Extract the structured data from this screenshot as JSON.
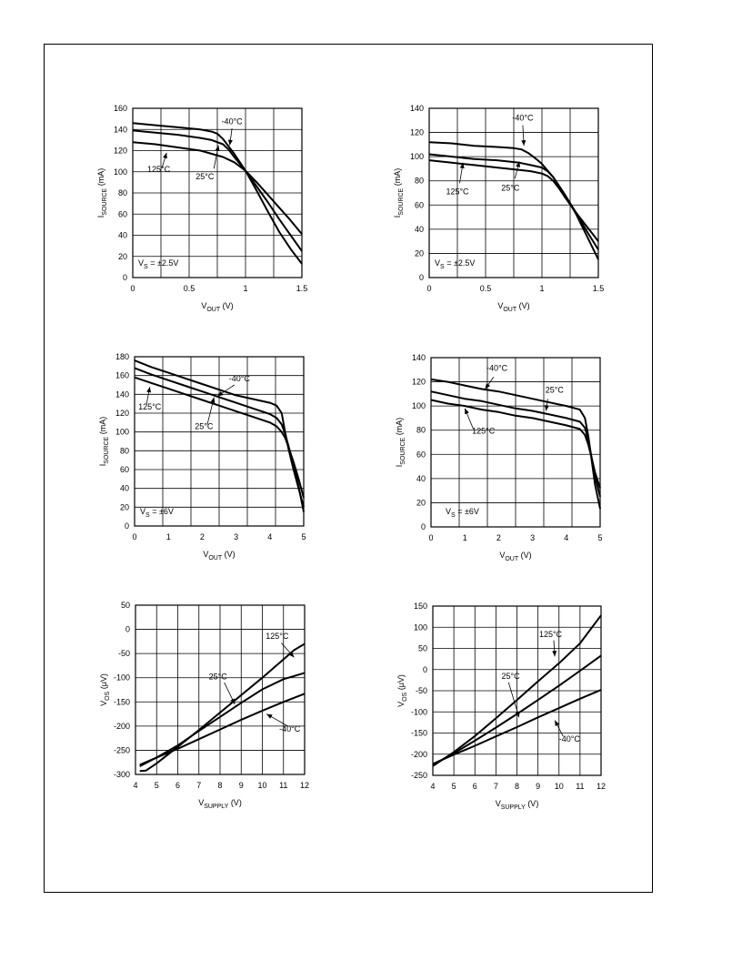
{
  "chart_data": [
    {
      "type": "line",
      "xlabel": {
        "main": "V",
        "sub": "OUT",
        "unit": " (V)"
      },
      "ylabel": {
        "main": "I",
        "sub": "SOURCE",
        "unit": " (mA)"
      },
      "xlim": [
        0,
        1.5
      ],
      "ylim": [
        0,
        160
      ],
      "xticks": [
        0,
        0.5,
        1,
        1.5
      ],
      "xtick_labels": [
        "0",
        "0.5",
        "1",
        "1.5"
      ],
      "yticks": [
        0,
        20,
        40,
        60,
        80,
        100,
        120,
        140,
        160
      ],
      "condition": "V_S = ±2.5V",
      "condition_parts": {
        "main": "V",
        "sub": "S",
        "rest": " = ±2.5V"
      },
      "grid": true,
      "series": [
        {
          "name": "-40°C",
          "x": [
            0,
            0.2,
            0.4,
            0.6,
            0.7,
            0.75,
            0.8,
            0.9,
            1.0,
            1.1,
            1.2,
            1.3,
            1.4,
            1.5
          ],
          "y": [
            146,
            144,
            142,
            140,
            138,
            136,
            131,
            117,
            101,
            82,
            62,
            43,
            27,
            13
          ]
        },
        {
          "name": "25°C",
          "x": [
            0,
            0.2,
            0.4,
            0.6,
            0.7,
            0.8,
            0.85,
            0.9,
            1.0,
            1.1,
            1.2,
            1.3,
            1.4,
            1.5
          ],
          "y": [
            139,
            137,
            135,
            132,
            130,
            126,
            121,
            114,
            101,
            86,
            71,
            55,
            40,
            25
          ]
        },
        {
          "name": "125°C",
          "x": [
            0,
            0.2,
            0.4,
            0.6,
            0.7,
            0.8,
            0.9,
            1.0,
            1.1,
            1.2,
            1.3,
            1.4,
            1.5
          ],
          "y": [
            128,
            126,
            123,
            120,
            117,
            114,
            109,
            101,
            90,
            78,
            66,
            54,
            41
          ]
        }
      ],
      "annotations": [
        {
          "text": "-40°C",
          "x": 0.88,
          "y": 145,
          "ax": 0.88,
          "ay": 141,
          "bx": 0.86,
          "by": 125
        },
        {
          "text": "25°C",
          "x": 0.64,
          "y": 93,
          "ax": 0.72,
          "ay": 103,
          "bx": 0.76,
          "by": 125
        },
        {
          "text": "125°C",
          "x": 0.23,
          "y": 100,
          "ax": 0.26,
          "ay": 104,
          "bx": 0.3,
          "by": 118
        }
      ]
    },
    {
      "type": "line",
      "xlabel": {
        "main": "V",
        "sub": "OUT",
        "unit": " (V)"
      },
      "ylabel": {
        "main": "I",
        "sub": "SOURCE",
        "unit": " (mA)"
      },
      "xlim": [
        0,
        1.5
      ],
      "ylim": [
        0,
        140
      ],
      "xticks": [
        0,
        0.5,
        1,
        1.5
      ],
      "xtick_labels": [
        "0",
        "0.5",
        "1",
        "1.5"
      ],
      "yticks": [
        0,
        20,
        40,
        60,
        80,
        100,
        120,
        140
      ],
      "condition": "V_S = ±2.5V",
      "condition_parts": {
        "main": "V",
        "sub": "S",
        "rest": " = ±2.5V"
      },
      "grid": true,
      "series": [
        {
          "name": "-40°C",
          "x": [
            0,
            0.2,
            0.4,
            0.6,
            0.75,
            0.82,
            0.88,
            0.95,
            1.0,
            1.1,
            1.2,
            1.3,
            1.4,
            1.5
          ],
          "y": [
            112,
            111,
            109,
            108,
            107,
            106,
            103,
            98,
            94,
            83,
            69,
            54,
            38,
            23
          ]
        },
        {
          "name": "25°C",
          "x": [
            0,
            0.2,
            0.4,
            0.6,
            0.8,
            0.9,
            1.0,
            1.05,
            1.1,
            1.2,
            1.3,
            1.4,
            1.5
          ],
          "y": [
            102,
            100,
            98,
            97,
            95,
            93,
            91,
            88,
            83,
            69,
            53,
            34,
            15
          ]
        },
        {
          "name": "125°C",
          "x": [
            0,
            0.2,
            0.4,
            0.6,
            0.8,
            0.9,
            1.0,
            1.05,
            1.1,
            1.15,
            1.2,
            1.3,
            1.4,
            1.5
          ],
          "y": [
            97,
            95,
            93,
            91,
            89,
            88,
            86,
            84,
            80,
            74,
            67,
            54,
            42,
            30
          ]
        }
      ],
      "annotations": [
        {
          "text": "-40°C",
          "x": 0.83,
          "y": 130,
          "ax": 0.83,
          "ay": 126,
          "bx": 0.84,
          "by": 109
        },
        {
          "text": "25°C",
          "x": 0.72,
          "y": 72,
          "ax": 0.76,
          "ay": 82,
          "bx": 0.8,
          "by": 96
        },
        {
          "text": "125°C",
          "x": 0.25,
          "y": 69,
          "ax": 0.27,
          "ay": 78,
          "bx": 0.3,
          "by": 95
        }
      ]
    },
    {
      "type": "line",
      "xlabel": {
        "main": "V",
        "sub": "OUT",
        "unit": " (V)"
      },
      "ylabel": {
        "main": "I",
        "sub": "SOURCE",
        "unit": " (mA)"
      },
      "xlim": [
        0,
        5
      ],
      "ylim": [
        0,
        180
      ],
      "xticks": [
        0,
        1,
        2,
        3,
        4,
        5
      ],
      "xtick_labels": [
        "0",
        "1",
        "2",
        "3",
        "4",
        "5"
      ],
      "yticks": [
        0,
        20,
        40,
        60,
        80,
        100,
        120,
        140,
        160,
        180
      ],
      "condition": "V_S = ±6V",
      "condition_parts": {
        "main": "V",
        "sub": "S",
        "rest": " = ±6V"
      },
      "grid": true,
      "series": [
        {
          "name": "-40°C",
          "x": [
            0,
            0.5,
            1,
            1.5,
            2,
            2.5,
            3,
            3.5,
            4,
            4.2,
            4.35,
            4.45,
            4.55,
            4.7,
            4.85,
            5
          ],
          "y": [
            176,
            169,
            163,
            157,
            151,
            145,
            139,
            135,
            131,
            128,
            120,
            100,
            82,
            60,
            40,
            20
          ]
        },
        {
          "name": "25°C",
          "x": [
            0,
            0.5,
            1,
            1.5,
            2,
            2.5,
            3,
            3.5,
            4,
            4.2,
            4.35,
            4.45,
            4.55,
            4.7,
            4.85,
            5
          ],
          "y": [
            168,
            161,
            155,
            149,
            143,
            137,
            131,
            125,
            119,
            115,
            108,
            98,
            85,
            65,
            42,
            15
          ]
        },
        {
          "name": "125°C",
          "x": [
            0,
            0.5,
            1,
            1.5,
            2,
            2.5,
            3,
            3.5,
            4,
            4.2,
            4.35,
            4.45,
            4.55,
            4.7,
            4.85,
            5
          ],
          "y": [
            158,
            152,
            146,
            140,
            134,
            128,
            122,
            116,
            110,
            106,
            100,
            94,
            84,
            68,
            50,
            30
          ]
        }
      ],
      "annotations": [
        {
          "text": "-40°C",
          "x": 3.1,
          "y": 154,
          "ax": 2.95,
          "ay": 150,
          "bx": 2.45,
          "by": 138
        },
        {
          "text": "25°C",
          "x": 2.05,
          "y": 103,
          "ax": 2.15,
          "ay": 108,
          "bx": 2.35,
          "by": 137
        },
        {
          "text": "125°C",
          "x": 0.45,
          "y": 124,
          "ax": 0.35,
          "ay": 129,
          "bx": 0.45,
          "by": 148
        }
      ]
    },
    {
      "type": "line",
      "xlabel": {
        "main": "V",
        "sub": "OUT",
        "unit": " (V)"
      },
      "ylabel": {
        "main": "I",
        "sub": "SOURCE",
        "unit": " (mA)"
      },
      "xlim": [
        0,
        5
      ],
      "ylim": [
        0,
        140
      ],
      "xticks": [
        0,
        1,
        2,
        3,
        4,
        5
      ],
      "xtick_labels": [
        "0",
        "1",
        "2",
        "3",
        "4",
        "5"
      ],
      "yticks": [
        0,
        20,
        40,
        60,
        80,
        100,
        120,
        140
      ],
      "condition": "V_S = ±6V",
      "condition_parts": {
        "main": "V",
        "sub": "S",
        "rest": " = ±6V"
      },
      "grid": true,
      "series": [
        {
          "name": "-40°C",
          "x": [
            0,
            0.5,
            1,
            1.5,
            2,
            2.5,
            3,
            3.5,
            4,
            4.4,
            4.55,
            4.65,
            4.75,
            4.85,
            5
          ],
          "y": [
            122,
            120,
            117,
            114,
            112,
            109,
            106,
            103,
            100,
            97,
            90,
            75,
            55,
            35,
            15
          ]
        },
        {
          "name": "25°C",
          "x": [
            0,
            0.5,
            1,
            1.5,
            2,
            2.5,
            3,
            3.5,
            4,
            4.4,
            4.55,
            4.65,
            4.75,
            4.85,
            5
          ],
          "y": [
            112,
            109,
            106,
            104,
            101,
            98,
            96,
            93,
            90,
            87,
            82,
            72,
            57,
            42,
            25
          ]
        },
        {
          "name": "125°C",
          "x": [
            0,
            0.5,
            1,
            1.5,
            2,
            2.5,
            3,
            3.5,
            4,
            4.4,
            4.55,
            4.65,
            4.75,
            4.85,
            5
          ],
          "y": [
            105,
            102,
            100,
            97,
            95,
            92,
            90,
            87,
            84,
            81,
            76,
            68,
            57,
            45,
            32
          ]
        }
      ],
      "annotations": [
        {
          "text": "-40°C",
          "x": 1.95,
          "y": 129,
          "ax": 1.85,
          "ay": 124,
          "bx": 1.6,
          "by": 114
        },
        {
          "text": "25°C",
          "x": 3.65,
          "y": 111,
          "ax": 3.45,
          "ay": 106,
          "bx": 3.4,
          "by": 96
        },
        {
          "text": "125°C",
          "x": 1.55,
          "y": 77,
          "ax": 1.25,
          "ay": 81,
          "bx": 1.0,
          "by": 98
        }
      ]
    },
    {
      "type": "line",
      "xlabel": {
        "main": "V",
        "sub": "SUPPLY",
        "unit": " (V)"
      },
      "ylabel": {
        "main": "V",
        "sub": "OS",
        "unit": " (μV)"
      },
      "xlim": [
        4,
        12
      ],
      "ylim": [
        -300,
        50
      ],
      "xticks": [
        4,
        5,
        6,
        7,
        8,
        9,
        10,
        11,
        12
      ],
      "xtick_labels": [
        "4",
        "5",
        "6",
        "7",
        "8",
        "9",
        "10",
        "11",
        "12"
      ],
      "yticks": [
        -300,
        -250,
        -200,
        -150,
        -100,
        -50,
        0,
        50
      ],
      "grid": true,
      "series": [
        {
          "name": "125°C",
          "x": [
            4.2,
            4.5,
            5,
            6,
            7,
            8,
            9,
            10,
            11,
            11.5,
            12
          ],
          "y": [
            -293,
            -292,
            -277,
            -243,
            -208,
            -172,
            -136,
            -100,
            -62,
            -43,
            -30
          ]
        },
        {
          "name": "25°C",
          "x": [
            4.2,
            5,
            6,
            7,
            8,
            9,
            10,
            11,
            12
          ],
          "y": [
            -283,
            -265,
            -240,
            -210,
            -181,
            -152,
            -124,
            -103,
            -90
          ]
        },
        {
          "name": "-40°C",
          "x": [
            4.2,
            5,
            6,
            7,
            8,
            9,
            10,
            11,
            12
          ],
          "y": [
            -280,
            -265,
            -247,
            -227,
            -207,
            -187,
            -168,
            -150,
            -133
          ]
        }
      ],
      "annotations": [
        {
          "text": "125°C",
          "x": 10.7,
          "y": -20,
          "ax": 10.9,
          "ay": -28,
          "bx": 11.5,
          "by": -58
        },
        {
          "text": "25°C",
          "x": 7.9,
          "y": -103,
          "ax": 8.2,
          "ay": -110,
          "bx": 8.7,
          "by": -155
        },
        {
          "text": "-40°C",
          "x": 11.3,
          "y": -212,
          "ax": 11.2,
          "ay": -200,
          "bx": 10.2,
          "by": -175
        }
      ]
    },
    {
      "type": "line",
      "xlabel": {
        "main": "V",
        "sub": "SUPPLY",
        "unit": " (V)"
      },
      "ylabel": {
        "main": "V",
        "sub": "OS",
        "unit": " (μV)"
      },
      "xlim": [
        4,
        12
      ],
      "ylim": [
        -250,
        150
      ],
      "xticks": [
        4,
        5,
        6,
        7,
        8,
        9,
        10,
        11,
        12
      ],
      "xtick_labels": [
        "4",
        "5",
        "6",
        "7",
        "8",
        "9",
        "10",
        "11",
        "12"
      ],
      "yticks": [
        -250,
        -200,
        -150,
        -100,
        -50,
        0,
        50,
        100,
        150
      ],
      "grid": true,
      "series": [
        {
          "name": "125°C",
          "x": [
            4,
            5,
            6,
            7,
            8,
            9,
            10,
            11,
            12
          ],
          "y": [
            -228,
            -195,
            -157,
            -115,
            -72,
            -28,
            15,
            62,
            128
          ]
        },
        {
          "name": "25°C",
          "x": [
            4,
            5,
            6,
            7,
            8,
            9,
            10,
            11,
            12
          ],
          "y": [
            -225,
            -198,
            -168,
            -137,
            -105,
            -72,
            -38,
            -3,
            33
          ]
        },
        {
          "name": "-40°C",
          "x": [
            4,
            5,
            6,
            7,
            8,
            9,
            10,
            11,
            12
          ],
          "y": [
            -223,
            -201,
            -180,
            -158,
            -136,
            -113,
            -91,
            -69,
            -48
          ]
        }
      ],
      "annotations": [
        {
          "text": "125°C",
          "x": 9.6,
          "y": 77,
          "ax": 9.75,
          "ay": 69,
          "bx": 9.8,
          "by": 31
        },
        {
          "text": "25°C",
          "x": 7.7,
          "y": -22,
          "ax": 7.6,
          "ay": -30,
          "bx": 8.1,
          "by": -113
        },
        {
          "text": "-40°C",
          "x": 10.5,
          "y": -170,
          "ax": 10.2,
          "ay": -158,
          "bx": 9.8,
          "by": -120
        }
      ]
    }
  ]
}
